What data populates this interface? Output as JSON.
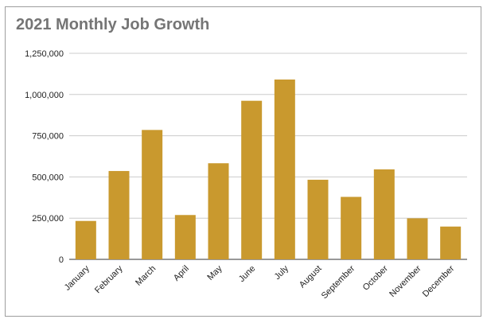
{
  "chart_data": {
    "type": "bar",
    "title": "2021 Monthly Job Growth",
    "xlabel": "",
    "ylabel": "",
    "categories": [
      "January",
      "February",
      "March",
      "April",
      "May",
      "June",
      "July",
      "August",
      "September",
      "October",
      "November",
      "December"
    ],
    "values": [
      233000,
      536000,
      785000,
      269000,
      583000,
      962000,
      1091000,
      483000,
      379000,
      546000,
      249000,
      199000
    ],
    "yticks": [
      "0",
      "250,000",
      "500,000",
      "750,000",
      "1,000,000",
      "1,250,000"
    ],
    "ylim": [
      0,
      1250000
    ],
    "grid": true,
    "legend": "none",
    "bar_color": "#c9992e"
  }
}
